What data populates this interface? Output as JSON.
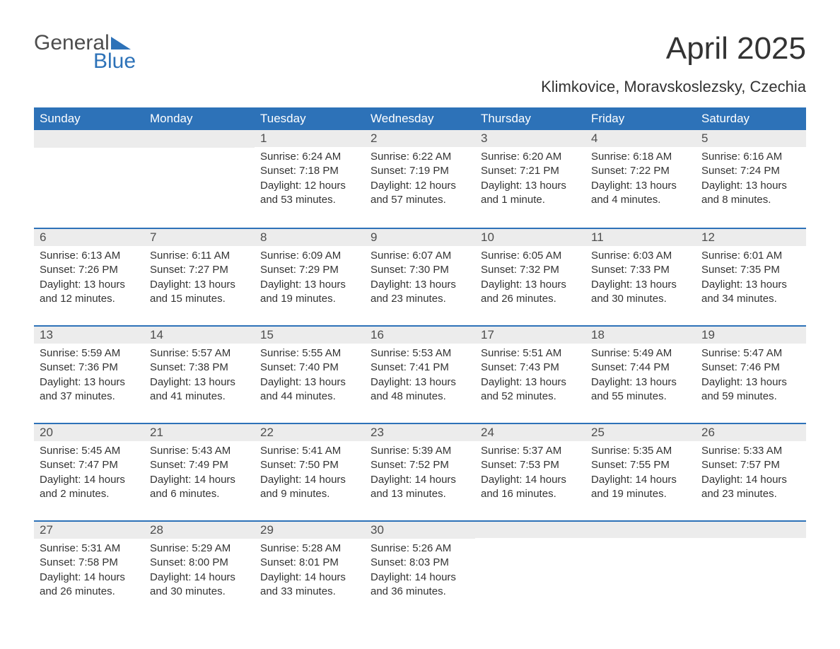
{
  "brand": {
    "top": "General",
    "bottom": "Blue"
  },
  "header": {
    "title": "April 2025",
    "location": "Klimkovice, Moravskoslezsky, Czechia"
  },
  "weekdays": [
    "Sunday",
    "Monday",
    "Tuesday",
    "Wednesday",
    "Thursday",
    "Friday",
    "Saturday"
  ],
  "colors": {
    "header_bg": "#2d72b8",
    "header_fg": "#ffffff",
    "daynum_bg": "#ececec",
    "row_border": "#2d72b8",
    "text": "#333333",
    "page_bg": "#ffffff"
  },
  "layout": {
    "columns": 7,
    "rows": 5,
    "first_weekday_index": 2,
    "days_in_month": 30
  },
  "days": {
    "1": {
      "num": "1",
      "sunrise": "Sunrise: 6:24 AM",
      "sunset": "Sunset: 7:18 PM",
      "dl1": "Daylight: 12 hours",
      "dl2": "and 53 minutes."
    },
    "2": {
      "num": "2",
      "sunrise": "Sunrise: 6:22 AM",
      "sunset": "Sunset: 7:19 PM",
      "dl1": "Daylight: 12 hours",
      "dl2": "and 57 minutes."
    },
    "3": {
      "num": "3",
      "sunrise": "Sunrise: 6:20 AM",
      "sunset": "Sunset: 7:21 PM",
      "dl1": "Daylight: 13 hours",
      "dl2": "and 1 minute."
    },
    "4": {
      "num": "4",
      "sunrise": "Sunrise: 6:18 AM",
      "sunset": "Sunset: 7:22 PM",
      "dl1": "Daylight: 13 hours",
      "dl2": "and 4 minutes."
    },
    "5": {
      "num": "5",
      "sunrise": "Sunrise: 6:16 AM",
      "sunset": "Sunset: 7:24 PM",
      "dl1": "Daylight: 13 hours",
      "dl2": "and 8 minutes."
    },
    "6": {
      "num": "6",
      "sunrise": "Sunrise: 6:13 AM",
      "sunset": "Sunset: 7:26 PM",
      "dl1": "Daylight: 13 hours",
      "dl2": "and 12 minutes."
    },
    "7": {
      "num": "7",
      "sunrise": "Sunrise: 6:11 AM",
      "sunset": "Sunset: 7:27 PM",
      "dl1": "Daylight: 13 hours",
      "dl2": "and 15 minutes."
    },
    "8": {
      "num": "8",
      "sunrise": "Sunrise: 6:09 AM",
      "sunset": "Sunset: 7:29 PM",
      "dl1": "Daylight: 13 hours",
      "dl2": "and 19 minutes."
    },
    "9": {
      "num": "9",
      "sunrise": "Sunrise: 6:07 AM",
      "sunset": "Sunset: 7:30 PM",
      "dl1": "Daylight: 13 hours",
      "dl2": "and 23 minutes."
    },
    "10": {
      "num": "10",
      "sunrise": "Sunrise: 6:05 AM",
      "sunset": "Sunset: 7:32 PM",
      "dl1": "Daylight: 13 hours",
      "dl2": "and 26 minutes."
    },
    "11": {
      "num": "11",
      "sunrise": "Sunrise: 6:03 AM",
      "sunset": "Sunset: 7:33 PM",
      "dl1": "Daylight: 13 hours",
      "dl2": "and 30 minutes."
    },
    "12": {
      "num": "12",
      "sunrise": "Sunrise: 6:01 AM",
      "sunset": "Sunset: 7:35 PM",
      "dl1": "Daylight: 13 hours",
      "dl2": "and 34 minutes."
    },
    "13": {
      "num": "13",
      "sunrise": "Sunrise: 5:59 AM",
      "sunset": "Sunset: 7:36 PM",
      "dl1": "Daylight: 13 hours",
      "dl2": "and 37 minutes."
    },
    "14": {
      "num": "14",
      "sunrise": "Sunrise: 5:57 AM",
      "sunset": "Sunset: 7:38 PM",
      "dl1": "Daylight: 13 hours",
      "dl2": "and 41 minutes."
    },
    "15": {
      "num": "15",
      "sunrise": "Sunrise: 5:55 AM",
      "sunset": "Sunset: 7:40 PM",
      "dl1": "Daylight: 13 hours",
      "dl2": "and 44 minutes."
    },
    "16": {
      "num": "16",
      "sunrise": "Sunrise: 5:53 AM",
      "sunset": "Sunset: 7:41 PM",
      "dl1": "Daylight: 13 hours",
      "dl2": "and 48 minutes."
    },
    "17": {
      "num": "17",
      "sunrise": "Sunrise: 5:51 AM",
      "sunset": "Sunset: 7:43 PM",
      "dl1": "Daylight: 13 hours",
      "dl2": "and 52 minutes."
    },
    "18": {
      "num": "18",
      "sunrise": "Sunrise: 5:49 AM",
      "sunset": "Sunset: 7:44 PM",
      "dl1": "Daylight: 13 hours",
      "dl2": "and 55 minutes."
    },
    "19": {
      "num": "19",
      "sunrise": "Sunrise: 5:47 AM",
      "sunset": "Sunset: 7:46 PM",
      "dl1": "Daylight: 13 hours",
      "dl2": "and 59 minutes."
    },
    "20": {
      "num": "20",
      "sunrise": "Sunrise: 5:45 AM",
      "sunset": "Sunset: 7:47 PM",
      "dl1": "Daylight: 14 hours",
      "dl2": "and 2 minutes."
    },
    "21": {
      "num": "21",
      "sunrise": "Sunrise: 5:43 AM",
      "sunset": "Sunset: 7:49 PM",
      "dl1": "Daylight: 14 hours",
      "dl2": "and 6 minutes."
    },
    "22": {
      "num": "22",
      "sunrise": "Sunrise: 5:41 AM",
      "sunset": "Sunset: 7:50 PM",
      "dl1": "Daylight: 14 hours",
      "dl2": "and 9 minutes."
    },
    "23": {
      "num": "23",
      "sunrise": "Sunrise: 5:39 AM",
      "sunset": "Sunset: 7:52 PM",
      "dl1": "Daylight: 14 hours",
      "dl2": "and 13 minutes."
    },
    "24": {
      "num": "24",
      "sunrise": "Sunrise: 5:37 AM",
      "sunset": "Sunset: 7:53 PM",
      "dl1": "Daylight: 14 hours",
      "dl2": "and 16 minutes."
    },
    "25": {
      "num": "25",
      "sunrise": "Sunrise: 5:35 AM",
      "sunset": "Sunset: 7:55 PM",
      "dl1": "Daylight: 14 hours",
      "dl2": "and 19 minutes."
    },
    "26": {
      "num": "26",
      "sunrise": "Sunrise: 5:33 AM",
      "sunset": "Sunset: 7:57 PM",
      "dl1": "Daylight: 14 hours",
      "dl2": "and 23 minutes."
    },
    "27": {
      "num": "27",
      "sunrise": "Sunrise: 5:31 AM",
      "sunset": "Sunset: 7:58 PM",
      "dl1": "Daylight: 14 hours",
      "dl2": "and 26 minutes."
    },
    "28": {
      "num": "28",
      "sunrise": "Sunrise: 5:29 AM",
      "sunset": "Sunset: 8:00 PM",
      "dl1": "Daylight: 14 hours",
      "dl2": "and 30 minutes."
    },
    "29": {
      "num": "29",
      "sunrise": "Sunrise: 5:28 AM",
      "sunset": "Sunset: 8:01 PM",
      "dl1": "Daylight: 14 hours",
      "dl2": "and 33 minutes."
    },
    "30": {
      "num": "30",
      "sunrise": "Sunrise: 5:26 AM",
      "sunset": "Sunset: 8:03 PM",
      "dl1": "Daylight: 14 hours",
      "dl2": "and 36 minutes."
    }
  }
}
